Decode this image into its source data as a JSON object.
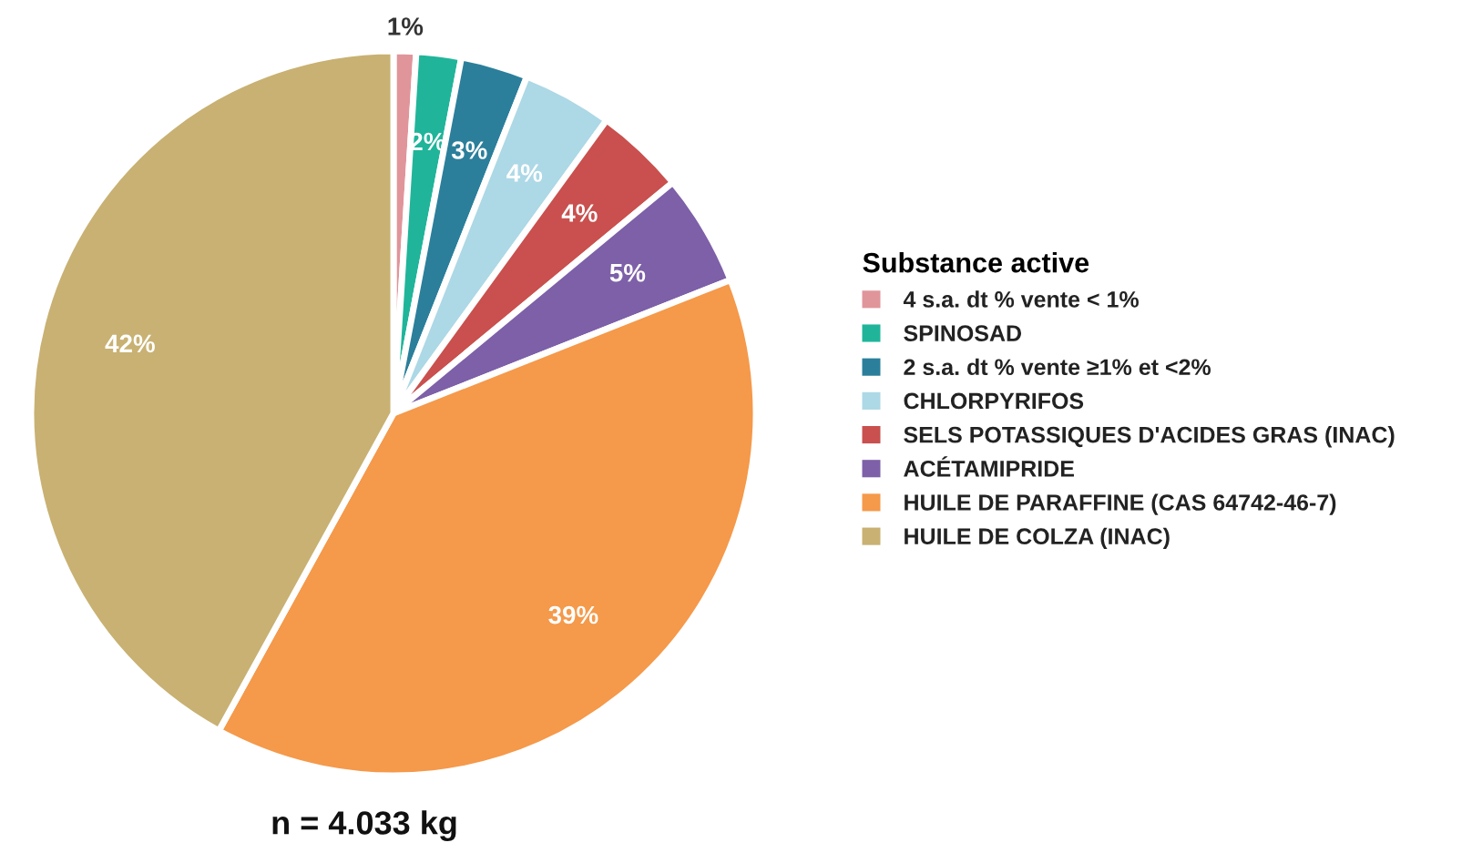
{
  "chart_data": {
    "type": "pie",
    "legend_title": "Substance active",
    "categories": [
      "4 s.a. dt % vente < 1%",
      "SPINOSAD",
      "2 s.a. dt % vente ≥1% et <2%",
      "CHLORPYRIFOS",
      "SELS POTASSIQUES D'ACIDES GRAS (INAC)",
      "ACÉTAMIPRIDE",
      "HUILE DE PARAFFINE (CAS 64742-46-7)",
      "HUILE DE COLZA (INAC)"
    ],
    "values": [
      1,
      2,
      3,
      4,
      4,
      5,
      39,
      42
    ],
    "colors": [
      "#e0959b",
      "#20b59a",
      "#2b7f9b",
      "#add8e6",
      "#c9504e",
      "#7d60a8",
      "#f5994a",
      "#c8b172"
    ],
    "value_labels": [
      "1%",
      "2%",
      "3%",
      "4%",
      "4%",
      "5%",
      "39%",
      "42%"
    ],
    "legend": "right",
    "annotations": [
      "n = 4.033 kg"
    ]
  }
}
